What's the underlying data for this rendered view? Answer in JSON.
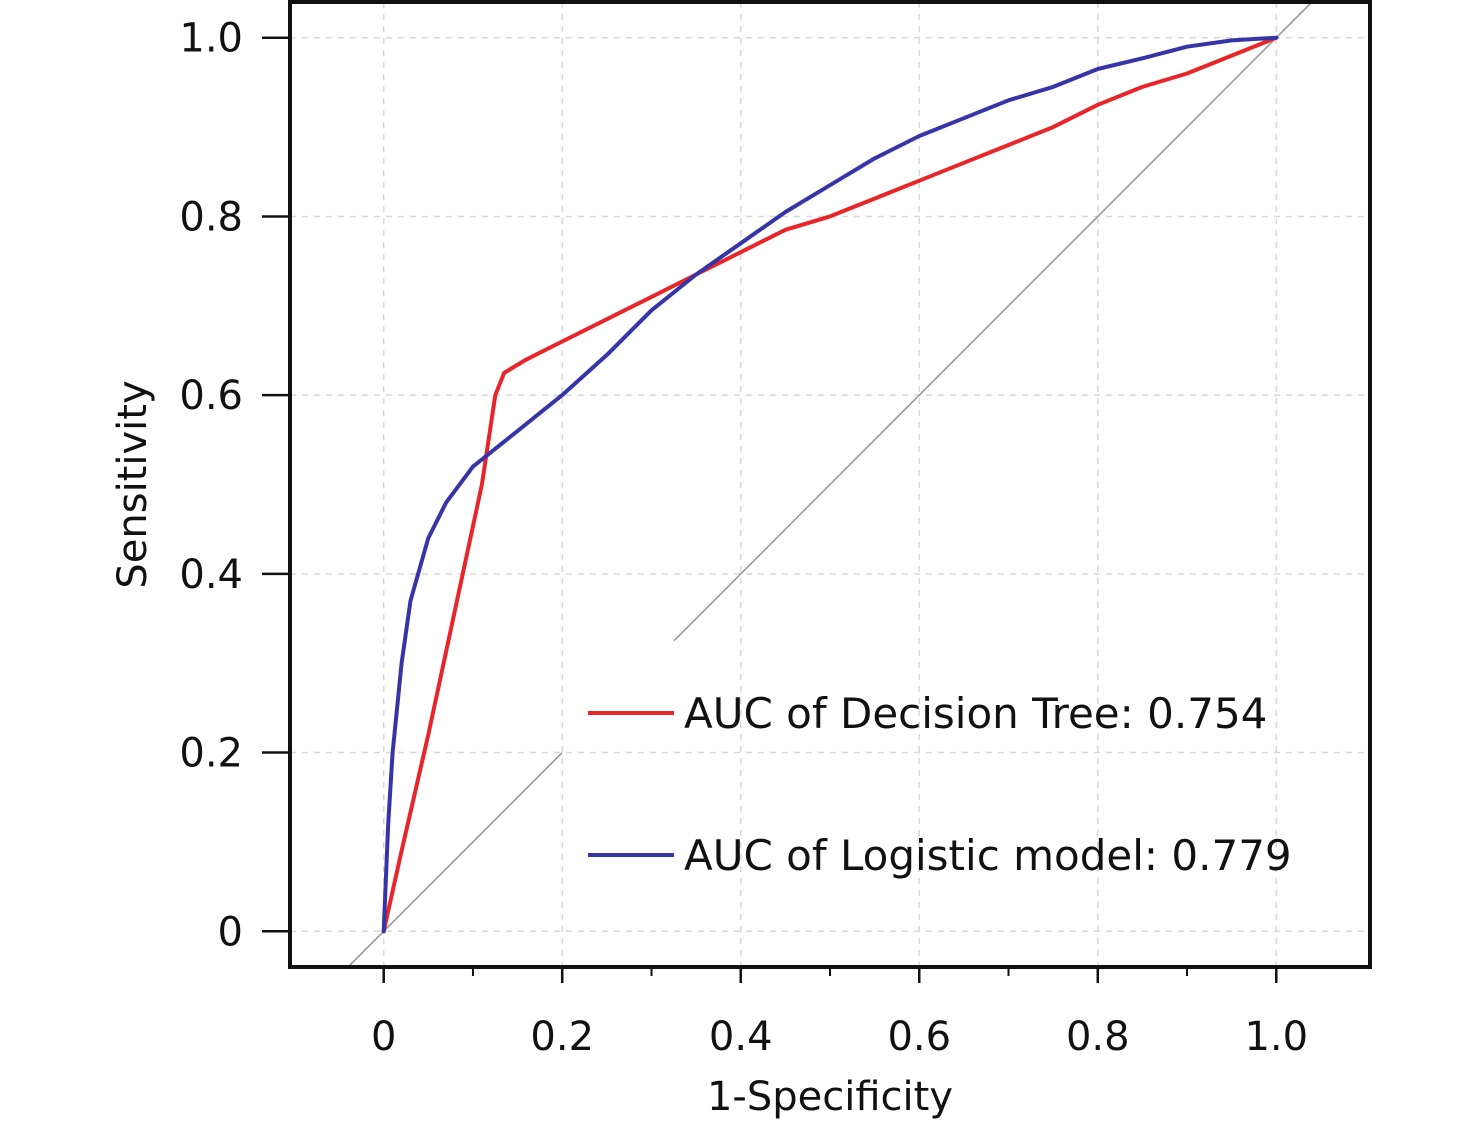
{
  "chart_data": {
    "type": "line",
    "xlabel": "1-Specificity",
    "ylabel": "Sensitivity",
    "xlim": [
      -0.105,
      1.105
    ],
    "ylim": [
      -0.04,
      1.04
    ],
    "x_ticks": [
      {
        "value": 0,
        "label": "0"
      },
      {
        "value": 0.2,
        "label": "0.2"
      },
      {
        "value": 0.4,
        "label": "0.4"
      },
      {
        "value": 0.6,
        "label": "0.6"
      },
      {
        "value": 0.8,
        "label": "0.8"
      },
      {
        "value": 1.0,
        "label": "1.0"
      }
    ],
    "x_minor_ticks": [
      0.1,
      0.3,
      0.5,
      0.7,
      0.9
    ],
    "y_ticks": [
      {
        "value": 0,
        "label": "0"
      },
      {
        "value": 0.2,
        "label": "0.2"
      },
      {
        "value": 0.4,
        "label": "0.4"
      },
      {
        "value": 0.6,
        "label": "0.6"
      },
      {
        "value": 0.8,
        "label": "0.8"
      },
      {
        "value": 1.0,
        "label": "1.0"
      }
    ],
    "grid": true,
    "legend_position": "bottom-right",
    "reference_line": {
      "color": "#9a9a9a",
      "segments": [
        [
          [
            -0.04,
            -0.04
          ],
          [
            0.2,
            0.2
          ]
        ],
        [
          [
            0.325,
            0.325
          ],
          [
            1.04,
            1.04
          ]
        ]
      ]
    },
    "series": [
      {
        "name": "AUC of Decision Tree: 0.754",
        "color": "#e8262a",
        "points": [
          [
            0,
            0
          ],
          [
            0.02,
            0.09
          ],
          [
            0.05,
            0.22
          ],
          [
            0.08,
            0.36
          ],
          [
            0.11,
            0.5
          ],
          [
            0.125,
            0.6
          ],
          [
            0.135,
            0.625
          ],
          [
            0.16,
            0.64
          ],
          [
            0.2,
            0.66
          ],
          [
            0.25,
            0.685
          ],
          [
            0.3,
            0.71
          ],
          [
            0.35,
            0.735
          ],
          [
            0.4,
            0.76
          ],
          [
            0.45,
            0.785
          ],
          [
            0.5,
            0.8
          ],
          [
            0.55,
            0.82
          ],
          [
            0.6,
            0.84
          ],
          [
            0.65,
            0.86
          ],
          [
            0.7,
            0.88
          ],
          [
            0.75,
            0.9
          ],
          [
            0.8,
            0.925
          ],
          [
            0.85,
            0.945
          ],
          [
            0.9,
            0.96
          ],
          [
            0.95,
            0.98
          ],
          [
            1.0,
            1.0
          ]
        ]
      },
      {
        "name": "AUC of Logistic model: 0.779",
        "color": "#3535a8",
        "points": [
          [
            0,
            0
          ],
          [
            0.005,
            0.12
          ],
          [
            0.01,
            0.2
          ],
          [
            0.02,
            0.3
          ],
          [
            0.03,
            0.37
          ],
          [
            0.05,
            0.44
          ],
          [
            0.07,
            0.48
          ],
          [
            0.1,
            0.52
          ],
          [
            0.15,
            0.56
          ],
          [
            0.2,
            0.6
          ],
          [
            0.25,
            0.645
          ],
          [
            0.3,
            0.695
          ],
          [
            0.35,
            0.735
          ],
          [
            0.4,
            0.77
          ],
          [
            0.45,
            0.805
          ],
          [
            0.5,
            0.835
          ],
          [
            0.55,
            0.865
          ],
          [
            0.6,
            0.89
          ],
          [
            0.65,
            0.91
          ],
          [
            0.7,
            0.93
          ],
          [
            0.75,
            0.945
          ],
          [
            0.8,
            0.965
          ],
          [
            0.85,
            0.977
          ],
          [
            0.9,
            0.99
          ],
          [
            0.95,
            0.997
          ],
          [
            1.0,
            1.0
          ]
        ]
      }
    ]
  }
}
